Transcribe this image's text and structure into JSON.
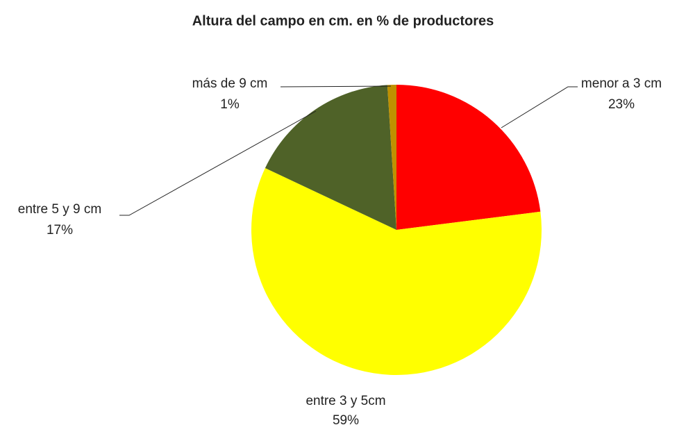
{
  "chart_data": {
    "type": "pie",
    "title": "Altura del campo en cm. en % de productores",
    "categories": [
      "menor a 3 cm",
      "entre 3 y 5cm",
      "entre 5 y 9 cm",
      "más de 9 cm"
    ],
    "values": [
      23,
      59,
      17,
      1
    ],
    "value_labels": [
      "23%",
      "59%",
      "17%",
      "1%"
    ],
    "colors": [
      "#ff0000",
      "#ffff00",
      "#4f6228",
      "#bf9000"
    ]
  }
}
